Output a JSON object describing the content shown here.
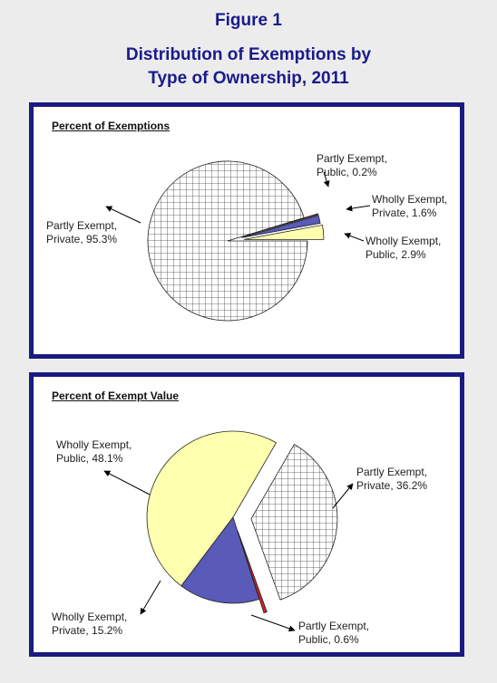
{
  "figure": {
    "number": "Figure 1",
    "title_line1": "Distribution of Exemptions by",
    "title_line2": "Type of Ownership, 2011"
  },
  "colors": {
    "background": "#ececec",
    "border": "#1a1a80",
    "title": "#1a1a8c",
    "partly_private_hatch": "#ffffff",
    "partly_public": "#cc2222",
    "wholly_private": "#5a5ab8",
    "wholly_public": "#ffffb0"
  },
  "chart_data": [
    {
      "type": "pie",
      "title": "Percent of Exemptions",
      "slices": [
        {
          "label_line1": "Partly Exempt,",
          "label_line2": "Private, 95.3%",
          "category": "Partly Exempt, Private",
          "value": 95.3,
          "fill": "hatch"
        },
        {
          "label_line1": "Partly Exempt,",
          "label_line2": "Public, 0.2%",
          "category": "Partly Exempt, Public",
          "value": 0.2,
          "fill": "#cc2222"
        },
        {
          "label_line1": "Wholly Exempt,",
          "label_line2": "Private, 1.6%",
          "category": "Wholly Exempt, Private",
          "value": 1.6,
          "fill": "#5a5ab8"
        },
        {
          "label_line1": "Wholly Exempt,",
          "label_line2": "Public, 2.9%",
          "category": "Wholly Exempt, Public",
          "value": 2.9,
          "fill": "#ffffb0"
        }
      ]
    },
    {
      "type": "pie",
      "title": "Percent of Exempt Value",
      "slices": [
        {
          "label_line1": "Partly Exempt,",
          "label_line2": "Private, 36.2%",
          "category": "Partly Exempt, Private",
          "value": 36.2,
          "fill": "hatch"
        },
        {
          "label_line1": "Partly Exempt,",
          "label_line2": "Public, 0.6%",
          "category": "Partly Exempt, Public",
          "value": 0.6,
          "fill": "#cc2222"
        },
        {
          "label_line1": "Wholly Exempt,",
          "label_line2": "Private, 15.2%",
          "category": "Wholly Exempt, Private",
          "value": 15.2,
          "fill": "#5a5ab8"
        },
        {
          "label_line1": "Wholly Exempt,",
          "label_line2": "Public, 48.1%",
          "category": "Wholly Exempt, Public",
          "value": 48.1,
          "fill": "#ffffb0"
        }
      ]
    }
  ]
}
